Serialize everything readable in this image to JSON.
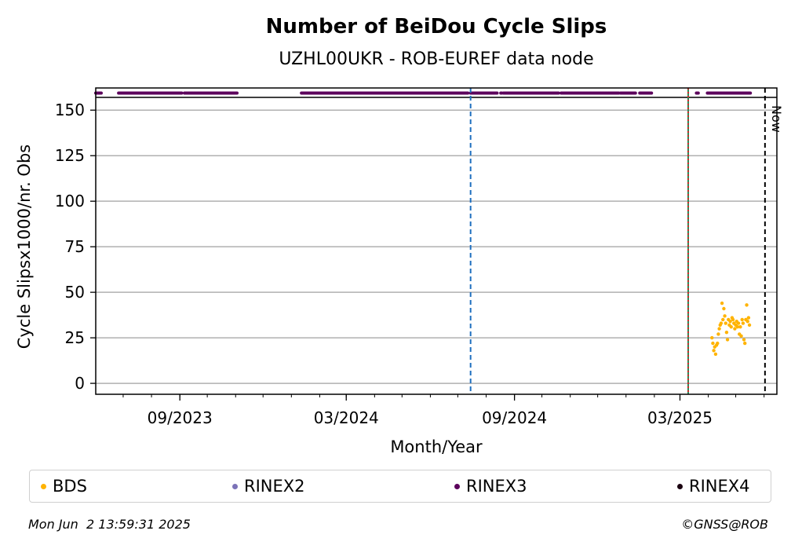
{
  "chart_data": {
    "type": "scatter",
    "title": "Number of BeiDou Cycle Slips",
    "subtitle": "UZHL00UKR - ROB-EUREF data node",
    "xlabel": "Month/Year",
    "ylabel": "Cycle Slipsx1000/nr. Obs",
    "x_ticks": [
      "2023-09-01",
      "2024-03-01",
      "2024-09-01",
      "2025-03-01"
    ],
    "x_tick_labels": [
      "09/2023",
      "03/2024",
      "09/2024",
      "03/2025"
    ],
    "xlim": [
      "2023-06-01",
      "2025-06-15"
    ],
    "ylim": [
      -6,
      157
    ],
    "y_ticks": [
      0,
      25,
      50,
      75,
      100,
      125,
      150
    ],
    "grid": "horizontal",
    "now_label": "Now",
    "vlines": [
      {
        "date": "2024-07-15",
        "color": "#1f6fbf",
        "style": "dashed"
      },
      {
        "date": "2025-03-10",
        "color": "#2e8b57",
        "style": "solid"
      },
      {
        "date": "2025-03-10",
        "color": "#d62728",
        "style": "dotted"
      },
      {
        "date": "2025-06-02",
        "color": "#000000",
        "style": "dashed",
        "label": "Now"
      }
    ],
    "availability": {
      "series": "RINEX3",
      "color": "#5c005c",
      "ranges": [
        [
          "2023-06-01",
          "2023-06-07"
        ],
        [
          "2023-06-26",
          "2023-09-03"
        ],
        [
          "2023-09-06",
          "2023-11-03"
        ],
        [
          "2024-01-12",
          "2024-07-12"
        ],
        [
          "2024-07-15",
          "2024-08-13"
        ],
        [
          "2024-08-17",
          "2024-08-18"
        ],
        [
          "2024-08-20",
          "2024-09-01"
        ],
        [
          "2024-09-02",
          "2024-10-20"
        ],
        [
          "2024-10-22",
          "2024-12-24"
        ],
        [
          "2024-12-26",
          "2025-01-12"
        ],
        [
          "2025-01-16",
          "2025-01-29"
        ],
        [
          "2025-03-19",
          "2025-03-21"
        ],
        [
          "2025-03-31",
          "2025-05-17"
        ]
      ]
    },
    "series": [
      {
        "name": "BDS",
        "color": "#ffb300",
        "points": [
          [
            "2025-04-05",
            25
          ],
          [
            "2025-04-06",
            22
          ],
          [
            "2025-04-07",
            18
          ],
          [
            "2025-04-08",
            20
          ],
          [
            "2025-04-09",
            16
          ],
          [
            "2025-04-10",
            21
          ],
          [
            "2025-04-11",
            22
          ],
          [
            "2025-04-12",
            27
          ],
          [
            "2025-04-13",
            30
          ],
          [
            "2025-04-14",
            32
          ],
          [
            "2025-04-15",
            33
          ],
          [
            "2025-04-16",
            44
          ],
          [
            "2025-04-17",
            35
          ],
          [
            "2025-04-18",
            41
          ],
          [
            "2025-04-19",
            37
          ],
          [
            "2025-04-20",
            33
          ],
          [
            "2025-04-21",
            28
          ],
          [
            "2025-04-22",
            24
          ],
          [
            "2025-04-23",
            35
          ],
          [
            "2025-04-24",
            32
          ],
          [
            "2025-04-25",
            34
          ],
          [
            "2025-04-26",
            31
          ],
          [
            "2025-04-27",
            36
          ],
          [
            "2025-04-28",
            35
          ],
          [
            "2025-04-29",
            33
          ],
          [
            "2025-04-30",
            30
          ],
          [
            "2025-05-01",
            32
          ],
          [
            "2025-05-02",
            34
          ],
          [
            "2025-05-03",
            31
          ],
          [
            "2025-05-04",
            33
          ],
          [
            "2025-05-05",
            27
          ],
          [
            "2025-05-06",
            31
          ],
          [
            "2025-05-07",
            26
          ],
          [
            "2025-05-08",
            35
          ],
          [
            "2025-05-09",
            33
          ],
          [
            "2025-05-10",
            24
          ],
          [
            "2025-05-11",
            22
          ],
          [
            "2025-05-12",
            35
          ],
          [
            "2025-05-13",
            43
          ],
          [
            "2025-05-14",
            34
          ],
          [
            "2025-05-15",
            36
          ],
          [
            "2025-05-16",
            32
          ]
        ]
      },
      {
        "name": "RINEX2",
        "color": "#7b72b8",
        "points": []
      },
      {
        "name": "RINEX3",
        "color": "#5c005c",
        "points": []
      },
      {
        "name": "RINEX4",
        "color": "#1a0010",
        "points": []
      }
    ]
  },
  "legend": [
    {
      "label": "BDS",
      "color": "#ffb300"
    },
    {
      "label": "RINEX2",
      "color": "#7b72b8"
    },
    {
      "label": "RINEX3",
      "color": "#5c005c"
    },
    {
      "label": "RINEX4",
      "color": "#1a0010"
    }
  ],
  "footer": {
    "timestamp": "Mon Jun  2 13:59:31 2025",
    "copyright": "©GNSS@ROB"
  }
}
